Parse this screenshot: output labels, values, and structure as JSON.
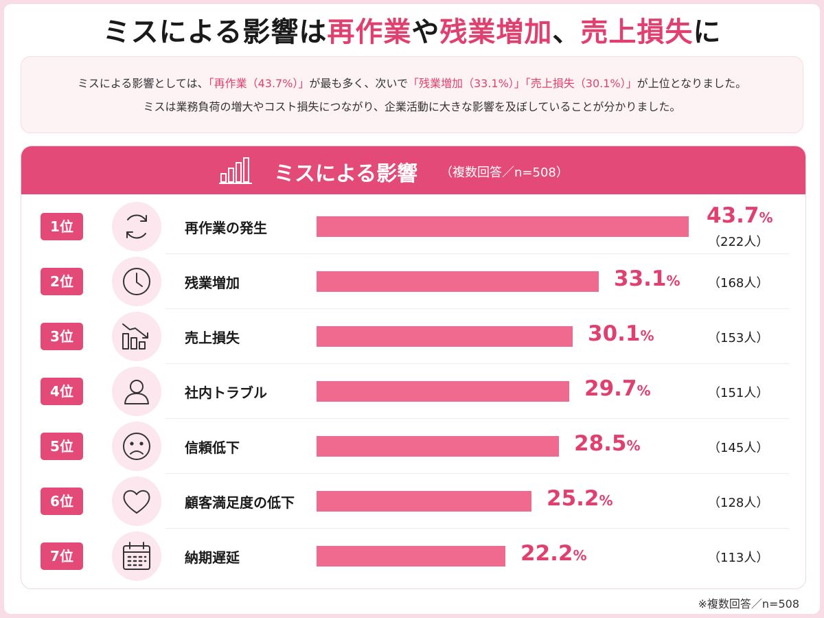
{
  "title": {
    "part1": "ミスによる影響は",
    "hl1": "再作業",
    "part2": "や",
    "hl2": "残業増加",
    "part3": "、",
    "hl3": "売上損失",
    "part4": "に"
  },
  "summary": {
    "l1_a": "ミスによる影響としては、",
    "l1_b": "「再作業（43.7%）」",
    "l1_c": "が最も多く、次いで",
    "l1_d": "「残業増加（33.1%）」「売上損失（30.1%）」",
    "l1_e": "が上位となりました。",
    "line2": "ミスは業務負荷の増大やコスト損失につながり、企業活動に大きな影響を及ぼしていることが分かりました。"
  },
  "header": {
    "title": "ミスによる影響",
    "note": "（複数回答／n=508）",
    "icon": "bar-chart-icon"
  },
  "footnote": "※複数回答／n=508",
  "colors": {
    "accent": "#e34a78",
    "bar": "#f06a8f",
    "text_accent": "#e0406f",
    "background": "#f9dde6"
  },
  "chart_data": {
    "type": "bar",
    "orientation": "horizontal",
    "title": "ミスによる影響",
    "unit": "%",
    "categories": [
      "再作業の発生",
      "残業増加",
      "売上損失",
      "社内トラブル",
      "信頼低下",
      "顧客満足度の低下",
      "納期遅延"
    ],
    "ranks": [
      "1位",
      "2位",
      "3位",
      "4位",
      "5位",
      "6位",
      "7位"
    ],
    "values": [
      43.7,
      33.1,
      30.1,
      29.7,
      28.5,
      25.2,
      22.2
    ],
    "value_labels": [
      "43.7",
      "33.1",
      "30.1",
      "29.7",
      "28.5",
      "25.2",
      "22.2"
    ],
    "counts": [
      "（222人）",
      "（168人）",
      "（153人）",
      "（151人）",
      "（145人）",
      "（128人）",
      "（113人）"
    ],
    "icons": [
      "refresh-icon",
      "clock-icon",
      "declining-bars-icon",
      "person-icon",
      "sad-face-icon",
      "heart-icon",
      "calendar-icon"
    ],
    "xlim": [
      0,
      43.7
    ],
    "grid": false,
    "legend": "none"
  }
}
